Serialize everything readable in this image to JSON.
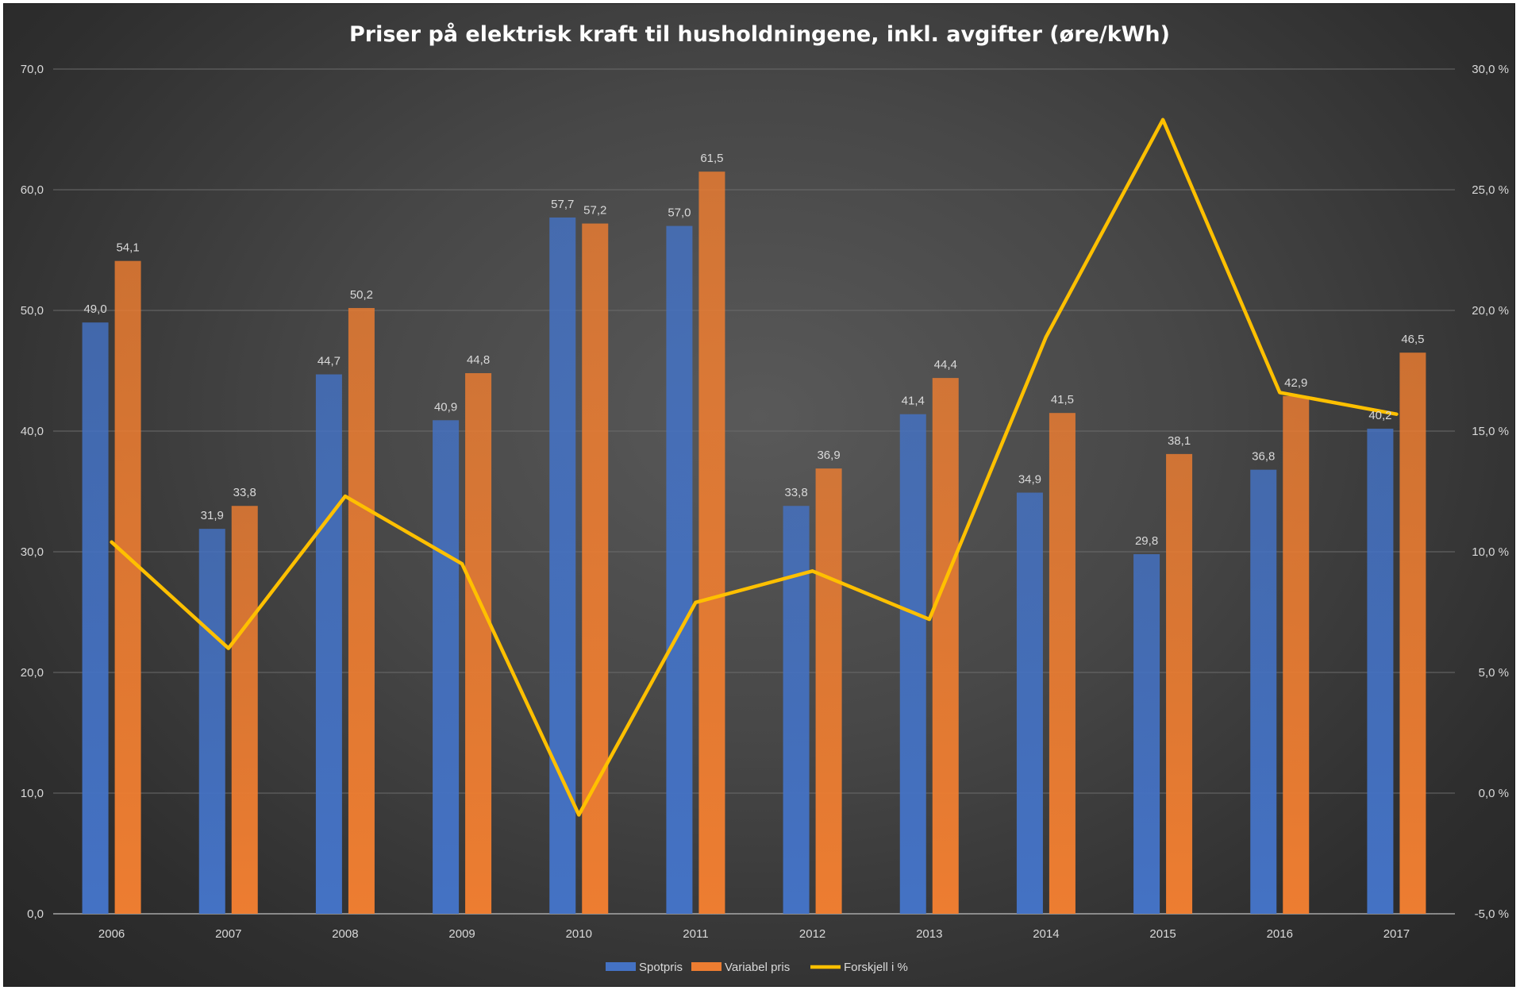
{
  "chart_data": {
    "type": "bar",
    "title": "Priser på elektrisk kraft til husholdningene, inkl. avgifter (øre/kWh)",
    "categories": [
      "2006",
      "2007",
      "2008",
      "2009",
      "2010",
      "2011",
      "2012",
      "2013",
      "2014",
      "2015",
      "2016",
      "2017"
    ],
    "series": [
      {
        "name": "Spotpris",
        "type": "bar",
        "axis": "left",
        "color": "#4472c4",
        "values": [
          49.0,
          31.9,
          44.7,
          40.9,
          57.7,
          57.0,
          33.8,
          41.4,
          34.9,
          29.8,
          36.8,
          40.2
        ],
        "labels": [
          "49,0",
          "31,9",
          "44,7",
          "40,9",
          "57,7",
          "57,0",
          "33,8",
          "41,4",
          "34,9",
          "29,8",
          "36,8",
          "40,2"
        ]
      },
      {
        "name": "Variabel pris",
        "type": "bar",
        "axis": "left",
        "color": "#ed7d31",
        "values": [
          54.1,
          33.8,
          50.2,
          44.8,
          57.2,
          61.5,
          36.9,
          44.4,
          41.5,
          38.1,
          42.9,
          46.5
        ],
        "labels": [
          "54,1",
          "33,8",
          "50,2",
          "44,8",
          "57,2",
          "61,5",
          "36,9",
          "44,4",
          "41,5",
          "38,1",
          "42,9",
          "46,5"
        ]
      },
      {
        "name": "Forskjell i %",
        "type": "line",
        "axis": "right",
        "color": "#ffc000",
        "values": [
          10.4,
          6.0,
          12.3,
          9.5,
          -0.9,
          7.9,
          9.2,
          7.2,
          18.9,
          27.9,
          16.6,
          15.7
        ]
      }
    ],
    "y_left": {
      "min": 0,
      "max": 70,
      "step": 10,
      "ticks": [
        "0,0",
        "10,0",
        "20,0",
        "30,0",
        "40,0",
        "50,0",
        "60,0",
        "70,0"
      ]
    },
    "y_right": {
      "min": -5,
      "max": 30,
      "step": 5,
      "ticks": [
        "-5,0 %",
        "0,0 %",
        "5,0 %",
        "10,0 %",
        "15,0 %",
        "20,0 %",
        "25,0 %",
        "30,0 %"
      ]
    },
    "grid": true,
    "legend_position": "bottom"
  }
}
